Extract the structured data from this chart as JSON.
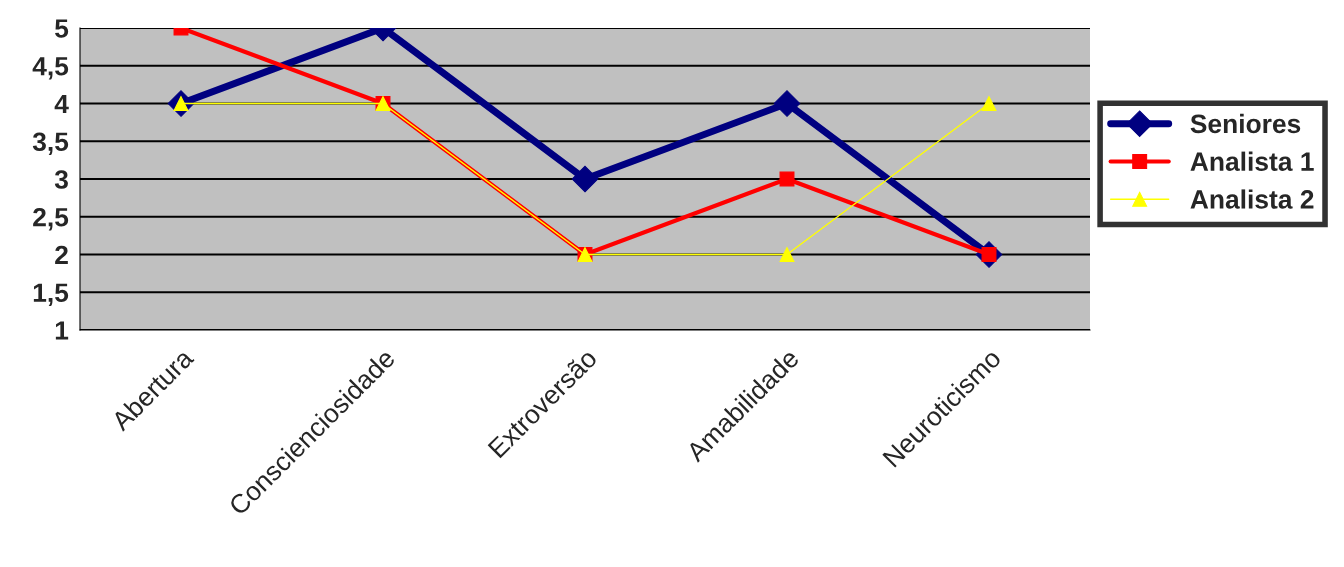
{
  "chart_data": {
    "type": "line",
    "categories": [
      "Abertura",
      "Conscienciosidade",
      "Extroversão",
      "Amabilidade",
      "Neuroticismo"
    ],
    "series": [
      {
        "name": "Seniores",
        "color": "#000080",
        "marker": "diamond",
        "values": [
          4,
          5,
          3,
          4,
          2
        ]
      },
      {
        "name": "Analista 1",
        "color": "#ff0000",
        "marker": "square",
        "values": [
          5,
          4,
          2,
          3,
          2
        ]
      },
      {
        "name": "Analista 2",
        "color": "#ffff00",
        "marker": "triangle",
        "values": [
          4,
          4,
          2,
          2,
          4
        ]
      }
    ],
    "ylim": [
      1,
      5
    ],
    "yticks": [
      1,
      {
        "value": 1.5,
        "label": "1,5"
      },
      2,
      {
        "value": 2.5,
        "label": "2,5"
      },
      3,
      {
        "value": 3.5,
        "label": "3,5"
      },
      4,
      {
        "value": 4.5,
        "label": "4,5"
      },
      5
    ],
    "grid": "y",
    "legend": "right",
    "line_style": "solid"
  }
}
